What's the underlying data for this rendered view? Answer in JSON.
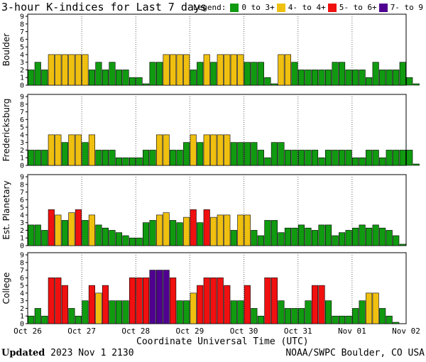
{
  "title": "3-hour K-indices for Last 7 days",
  "legend": {
    "label": "Legend:",
    "items": [
      {
        "text": "0 to 3+",
        "color": "#109a10"
      },
      {
        "text": "4- to 4+",
        "color": "#f0c010"
      },
      {
        "text": "5- to 6+",
        "color": "#f01010"
      },
      {
        "text": "7- to 9",
        "color": "#500090"
      }
    ]
  },
  "footer": {
    "updated_label": "Updated",
    "updated_value": "2023 Nov  1 2130",
    "credit": "NOAA/SWPC Boulder, CO USA",
    "xlabel": "Coordinate Universal Time (UTC)"
  },
  "chart_data": [
    {
      "type": "bar",
      "ylabel": "Boulder",
      "ylim": [
        0,
        9
      ],
      "x_ticks": [
        "Oct 26",
        "Oct 27",
        "Oct 28",
        "Oct 29",
        "Oct 30",
        "Oct 31",
        "Nov 01",
        "Nov 02"
      ],
      "values": [
        2,
        3,
        2,
        4,
        4,
        4,
        4,
        4,
        4,
        2,
        3,
        2,
        3,
        2,
        2,
        1,
        1,
        0,
        3,
        3,
        4,
        4,
        4,
        4,
        2,
        3,
        4,
        3,
        4,
        4,
        4,
        4,
        3,
        3,
        3,
        1,
        0,
        4,
        4,
        3,
        2,
        2,
        2,
        2,
        2,
        3,
        3,
        2,
        2,
        2,
        1,
        3,
        2,
        2,
        2,
        3,
        1,
        0
      ]
    },
    {
      "type": "bar",
      "ylabel": "Fredericksburg",
      "ylim": [
        0,
        9
      ],
      "x_ticks": [
        "Oct 26",
        "Oct 27",
        "Oct 28",
        "Oct 29",
        "Oct 30",
        "Oct 31",
        "Nov 01",
        "Nov 02"
      ],
      "values": [
        2,
        2,
        2,
        4,
        4,
        3,
        4,
        4,
        3,
        4,
        2,
        2,
        2,
        1,
        1,
        1,
        1,
        2,
        2,
        4,
        4,
        2,
        2,
        3,
        4,
        3,
        4,
        4,
        4,
        4,
        3,
        3,
        3,
        3,
        2,
        1,
        3,
        3,
        2,
        2,
        2,
        2,
        2,
        1,
        2,
        2,
        2,
        2,
        1,
        1,
        2,
        2,
        1,
        2,
        2,
        2,
        2,
        0
      ]
    },
    {
      "type": "bar",
      "ylabel": "Est. Planetary",
      "ylim": [
        0,
        9
      ],
      "x_ticks": [
        "Oct 26",
        "Oct 27",
        "Oct 28",
        "Oct 29",
        "Oct 30",
        "Oct 31",
        "Nov 01",
        "Nov 02"
      ],
      "values": [
        2.7,
        2.7,
        2,
        4.7,
        4,
        3.3,
        4.3,
        4.7,
        3.3,
        4,
        2.7,
        2.3,
        2,
        1.7,
        1.3,
        1,
        1,
        3,
        3.3,
        4,
        4.3,
        3.3,
        3,
        3.7,
        4.7,
        3,
        4.7,
        3.7,
        4,
        4,
        2,
        4,
        4,
        2,
        1.3,
        3.3,
        3.3,
        1.7,
        2.3,
        2.3,
        2.7,
        2.3,
        2,
        2.7,
        2.7,
        1.3,
        1.7,
        2,
        2.3,
        2.7,
        2.3,
        2.7,
        2.3,
        2,
        1.3,
        0
      ]
    },
    {
      "type": "bar",
      "ylabel": "College",
      "ylim": [
        0,
        9
      ],
      "x_ticks": [
        "Oct 26",
        "Oct 27",
        "Oct 28",
        "Oct 29",
        "Oct 30",
        "Oct 31",
        "Nov 01",
        "Nov 02"
      ],
      "values": [
        1,
        2,
        1,
        6,
        6,
        5,
        2,
        1,
        3,
        5,
        4,
        5,
        3,
        3,
        3,
        6,
        6,
        6,
        7,
        7,
        7,
        6,
        3,
        3,
        4,
        5,
        6,
        6,
        6,
        5,
        3,
        3,
        5,
        2,
        1,
        6,
        6,
        3,
        2,
        2,
        2,
        3,
        5,
        5,
        3,
        1,
        1,
        1,
        2,
        3,
        4,
        4,
        2,
        1,
        0
      ]
    }
  ]
}
